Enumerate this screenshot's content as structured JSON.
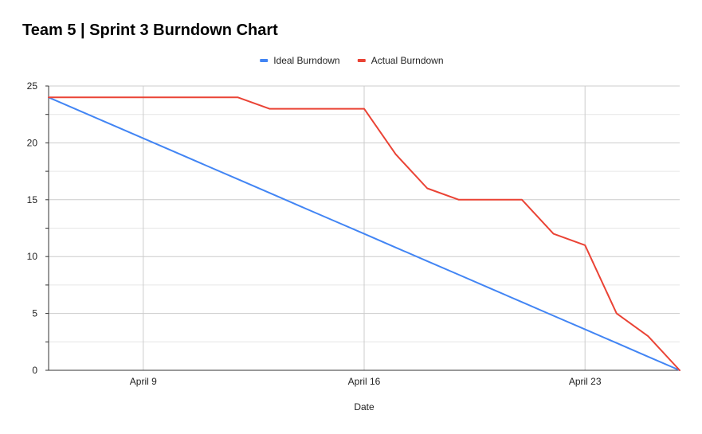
{
  "chart_data": {
    "type": "line",
    "title": "Team 5 | Sprint 3 Burndown Chart",
    "xlabel": "Date",
    "ylabel": "",
    "ylim": [
      0,
      25
    ],
    "yticks": [
      0,
      5,
      10,
      15,
      20,
      25
    ],
    "x_ticks": [
      {
        "date": "April 9",
        "label": "April 9"
      },
      {
        "date": "April 16",
        "label": "April 16"
      },
      {
        "date": "April 23",
        "label": "April 23"
      }
    ],
    "x": [
      "April 6",
      "April 7",
      "April 8",
      "April 9",
      "April 10",
      "April 11",
      "April 12",
      "April 13",
      "April 14",
      "April 15",
      "April 16",
      "April 17",
      "April 18",
      "April 19",
      "April 20",
      "April 21",
      "April 22",
      "April 23",
      "April 24",
      "April 25",
      "April 26"
    ],
    "legend_position": "top",
    "grid": true,
    "series": [
      {
        "name": "Ideal Burndown",
        "color": "#4285f4",
        "values": [
          24,
          22.8,
          21.6,
          20.4,
          19.2,
          18,
          16.8,
          15.6,
          14.4,
          13.2,
          12,
          10.8,
          9.6,
          8.4,
          7.2,
          6,
          4.8,
          3.6,
          2.4,
          1.2,
          0
        ]
      },
      {
        "name": "Actual Burndown",
        "color": "#ea4335",
        "values": [
          24,
          24,
          24,
          24,
          24,
          24,
          24,
          23,
          23,
          23,
          23,
          19,
          16,
          15,
          15,
          15,
          12,
          11,
          5,
          3,
          0
        ]
      }
    ]
  }
}
